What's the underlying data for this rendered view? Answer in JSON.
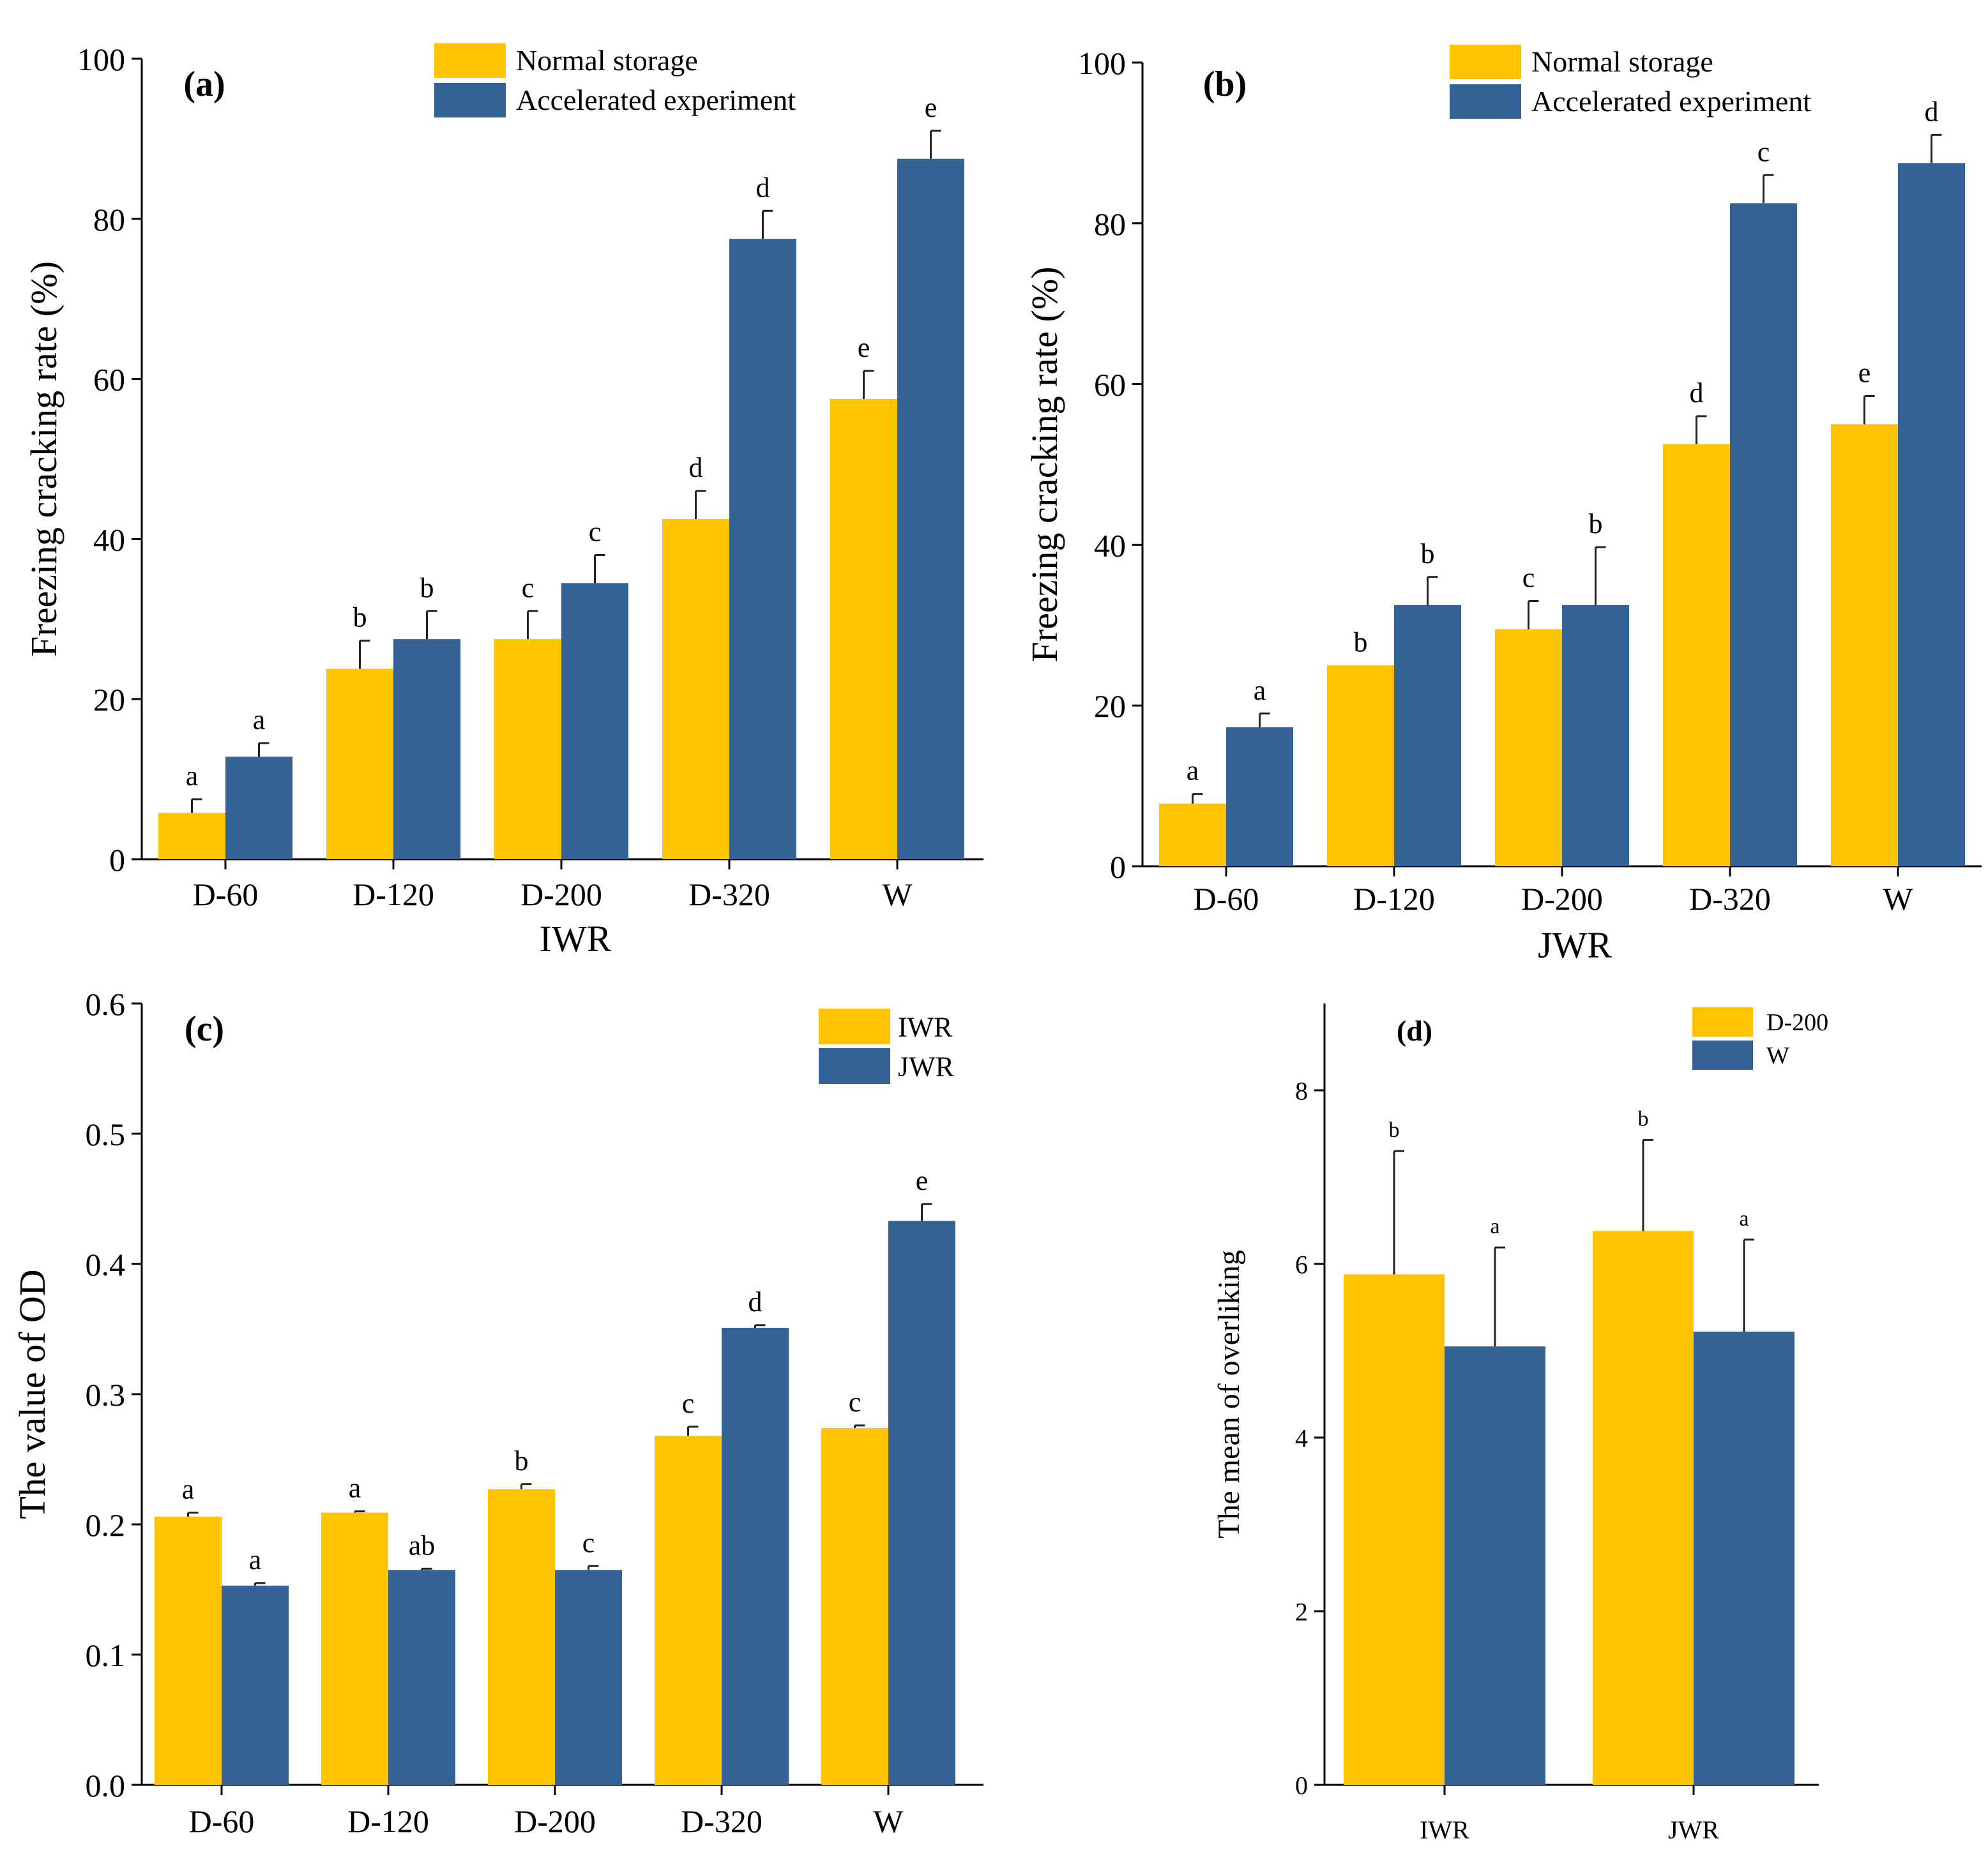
{
  "colors": {
    "primary": "#FFC300",
    "secondary": "#336394",
    "axis": "#000000",
    "error": "#222222"
  },
  "chart_data": [
    {
      "panel": "(a)",
      "type": "bar",
      "title": "(a)",
      "xlabel": "IWR",
      "ylabel": "Freezing cracking rate (%)",
      "categories": [
        "D-60",
        "D-120",
        "D-200",
        "D-320",
        "W"
      ],
      "ylim": [
        0,
        100
      ],
      "yticks": [
        "0",
        "20",
        "40",
        "60",
        "80",
        "100"
      ],
      "legend_position": "top-center",
      "series": [
        {
          "name": "Normal storage",
          "values": [
            5.8,
            23.8,
            27.5,
            42.5,
            57.5
          ],
          "errors": [
            1.7,
            3.5,
            3.5,
            3.5,
            3.5
          ],
          "letters": [
            "a",
            "b",
            "c",
            "d",
            "e"
          ]
        },
        {
          "name": "Accelerated experiment",
          "values": [
            12.8,
            27.5,
            34.5,
            77.5,
            87.5
          ],
          "errors": [
            1.7,
            3.5,
            3.5,
            3.5,
            3.5
          ],
          "letters": [
            "a",
            "b",
            "c",
            "d",
            "e"
          ]
        }
      ]
    },
    {
      "panel": "(b)",
      "type": "bar",
      "title": "(b)",
      "xlabel": "JWR",
      "ylabel": "Freezing cracking rate (%)",
      "categories": [
        "D-60",
        "D-120",
        "D-200",
        "D-320",
        "W"
      ],
      "ylim": [
        0,
        100
      ],
      "yticks": [
        "0",
        "20",
        "40",
        "60",
        "80",
        "100"
      ],
      "legend_position": "top-center",
      "series": [
        {
          "name": "Normal storage",
          "values": [
            7.8,
            25,
            29.5,
            52.5,
            55
          ],
          "errors": [
            1.2,
            0,
            3.5,
            3.5,
            3.5
          ],
          "letters": [
            "a",
            "b",
            "c",
            "d",
            "e"
          ]
        },
        {
          "name": "Accelerated experiment",
          "values": [
            17.3,
            32.5,
            32.5,
            82.5,
            87.5
          ],
          "errors": [
            1.7,
            3.5,
            7.2,
            3.5,
            3.5
          ],
          "letters": [
            "a",
            "b",
            "b",
            "c",
            "d"
          ]
        }
      ]
    },
    {
      "panel": "(c)",
      "type": "bar",
      "title": "(c)",
      "xlabel": "",
      "ylabel": "The value of OD",
      "categories": [
        "D-60",
        "D-120",
        "D-200",
        "D-320",
        "W"
      ],
      "ylim": [
        0,
        0.6
      ],
      "yticks": [
        "0.0",
        "0.1",
        "0.2",
        "0.3",
        "0.4",
        "0.5",
        "0.6"
      ],
      "legend_position": "top-right",
      "series": [
        {
          "name": "IWR",
          "values": [
            0.206,
            0.209,
            0.227,
            0.268,
            0.274
          ],
          "errors": [
            0.003,
            0.001,
            0.004,
            0.007,
            0.002
          ],
          "letters": [
            "a",
            "a",
            "b",
            "c",
            "c"
          ]
        },
        {
          "name": "JWR",
          "values": [
            0.153,
            0.165,
            0.165,
            0.351,
            0.433
          ],
          "errors": [
            0.002,
            0.001,
            0.003,
            0.002,
            0.013
          ],
          "letters": [
            "a",
            "ab",
            "c",
            "d",
            "e"
          ]
        }
      ]
    },
    {
      "panel": "(d)",
      "type": "bar",
      "title": "(d)",
      "xlabel": "",
      "ylabel": "The mean of overliking",
      "categories": [
        "IWR",
        "JWR"
      ],
      "ylim": [
        0,
        9
      ],
      "yticks": [
        "0",
        "2",
        "4",
        "6",
        "8"
      ],
      "legend_position": "top-center",
      "series": [
        {
          "name": "D-200",
          "values": [
            5.88,
            6.38
          ],
          "errors": [
            1.42,
            1.05
          ],
          "letters": [
            "b",
            "b"
          ]
        },
        {
          "name": "W",
          "values": [
            5.05,
            5.22
          ],
          "errors": [
            1.14,
            1.06
          ],
          "letters": [
            "a",
            "a"
          ]
        }
      ]
    }
  ]
}
